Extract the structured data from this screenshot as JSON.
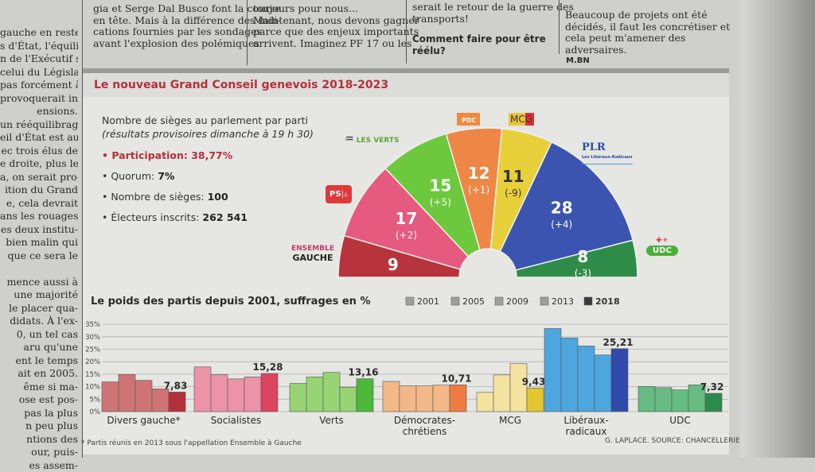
{
  "article": {
    "left_column": [
      "gauche en reste à",
      "s d'État, l'équilibre",
      "n de l'Exécutif sera",
      "celui du Législatif.",
      "pas forcément à",
      "provoquerait iné-",
      "ensions.",
      "un rééquilibrage",
      "eil d'État est aussi",
      "ec trois élus de",
      "e droite, plus le",
      "a, on serait pro-",
      "ition du Grand",
      "e, cela devrait",
      "ans les rouages",
      "es deux institu-",
      "bien malin qui",
      "que ce sera le",
      "",
      "mence aussi à",
      "une majorité",
      "le placer qua-",
      "didats. À l'ex-",
      "0, un tel cas",
      "aru qu'une",
      "ent le temps",
      "ait en 2005.",
      "ême si ma-",
      "ose est pos-",
      "pas la plus",
      "n peu plus",
      "ntions des",
      "our, puis-",
      "es assem-"
    ],
    "column_2": [
      "gia et Serge Dal Busco font la course",
      "en tête. Mais à la différence des indi-",
      "cations fournies par les sondages",
      "avant l'explosion des polémiques"
    ],
    "column_3": [
      "toujours pour nous...",
      "Maintenant, nous devons gagner",
      "parce que des enjeux importants",
      "arrivent. Imaginez PF 17 ou les"
    ],
    "column_4": [
      "serait le retour de la guerre des",
      "transports!"
    ],
    "column_4_question": [
      "Comment faire pour être",
      "réélu?"
    ],
    "column_5": [
      "Beaucoup de projets ont été",
      "décidés, il faut les concrétiser et",
      "cela peut m'amener des",
      "adversaires."
    ],
    "column_5_signature": "M.BN"
  },
  "infographic": {
    "title": "Le nouveau Grand Conseil genevois 2018-2023",
    "subtitle": "Nombre de sièges au parlement par parti",
    "subtitle_note": "(résultats provisoires dimanche à 19 h 30)",
    "facts": [
      {
        "label": "• Participation: ",
        "value": "38,77%",
        "highlight": true
      },
      {
        "label": "• Quorum: ",
        "value": "7%"
      },
      {
        "label": "• Nombre de sièges: ",
        "value": "100"
      },
      {
        "label": "• Électeurs inscrits: ",
        "value": "262 541"
      }
    ],
    "footnote": "* Partis réunis en 2013 sous l'appellation Ensemble à Gauche",
    "credit": "G. LAPLACE. SOURCE: CHANCELLERIE D'ÉTAT."
  },
  "chart_data": [
    {
      "type": "pie",
      "variant": "hemicycle",
      "title": "Nombre de sièges au parlement par parti",
      "total": 100,
      "slices": [
        {
          "party": "Ensemble à Gauche",
          "logo": [
            "ENSEMBLE",
            "GAUCHE"
          ],
          "seats": 9,
          "change": "",
          "color": "#b8343c"
        },
        {
          "party": "PS",
          "logo": [
            "PS"
          ],
          "seats": 17,
          "change": "(+2)",
          "color": "#e55a7e"
        },
        {
          "party": "Les Verts",
          "logo": [
            "LES VERTS"
          ],
          "seats": 15,
          "change": "(+5)",
          "color": "#6cc83c"
        },
        {
          "party": "PDC",
          "logo": [
            "PDC"
          ],
          "seats": 12,
          "change": "(+1)",
          "color": "#ee8646"
        },
        {
          "party": "MCG",
          "logo": [
            "MCG"
          ],
          "seats": 11,
          "change": "(-9)",
          "color": "#e8d03a"
        },
        {
          "party": "PLR",
          "logo": [
            "PLR",
            "Les Libéraux-Radicaux"
          ],
          "seats": 28,
          "change": "(+4)",
          "color": "#3a54b0"
        },
        {
          "party": "UDC",
          "logo": [
            "UDC"
          ],
          "seats": 8,
          "change": "(-3)",
          "color": "#2f8c48"
        }
      ]
    },
    {
      "type": "bar",
      "title": "Le poids des partis depuis 2001, suffrages en %",
      "legend": [
        "2001",
        "2005",
        "2009",
        "2013",
        "2018"
      ],
      "legend_placement": "top-right",
      "ylim": [
        0,
        35
      ],
      "yticks": [
        "0%",
        "5%",
        "10%",
        "15%",
        "20%",
        "25%",
        "30%",
        "35%"
      ],
      "grid": true,
      "groups": [
        {
          "label": [
            "Divers gauche*"
          ],
          "years": [
            "2001",
            "2005",
            "2009",
            "2013",
            "2018"
          ],
          "values": [
            11.9,
            14.9,
            12.5,
            9.1,
            7.83
          ],
          "label_2018": "7,83",
          "colors": [
            "#cf7474",
            "#b3303a"
          ]
        },
        {
          "label": [
            "Socialistes"
          ],
          "years": [
            "2001",
            "2005",
            "2009",
            "2013",
            "2018"
          ],
          "values": [
            17.9,
            14.8,
            13.1,
            13.9,
            15.28
          ],
          "label_2018": "15,28",
          "colors": [
            "#ec93a8",
            "#dc4462"
          ]
        },
        {
          "label": [
            "Verts"
          ],
          "years": [
            "2001",
            "2005",
            "2009",
            "2013",
            "2018"
          ],
          "values": [
            11.3,
            13.9,
            15.7,
            9.8,
            13.16
          ],
          "label_2018": "13,16",
          "colors": [
            "#98d474",
            "#4cb83a"
          ]
        },
        {
          "label": [
            "Démocrates-",
            "chrétiens"
          ],
          "years": [
            "2001",
            "2005",
            "2009",
            "2013",
            "2018"
          ],
          "values": [
            12.1,
            10.3,
            10.3,
            10.6,
            10.71
          ],
          "label_2018": "10,71",
          "colors": [
            "#f2b888",
            "#ee7c40"
          ]
        },
        {
          "label": [
            "MCG"
          ],
          "years": [
            "2005",
            "2009",
            "2013",
            "2018"
          ],
          "values": [
            7.7,
            14.7,
            19.2,
            9.43
          ],
          "label_2018": "9,43",
          "colors": [
            "#f4e2a0",
            "#e4c630"
          ]
        },
        {
          "label": [
            "Libéraux-",
            "radicaux"
          ],
          "years": [
            "2001",
            "2005",
            "2009",
            "2013",
            "2018"
          ],
          "values": [
            33.3,
            29.5,
            26.3,
            22.7,
            25.21
          ],
          "label_2018": "25,21",
          "colors": [
            "#4ea6de",
            "#2f4aa8"
          ]
        },
        {
          "label": [
            "UDC"
          ],
          "years": [
            "2001",
            "2005",
            "2009",
            "2013",
            "2018"
          ],
          "values": [
            10.1,
            9.6,
            8.7,
            10.7,
            7.32
          ],
          "label_2018": "7,32",
          "colors": [
            "#66bc82",
            "#2e8a4c"
          ]
        }
      ]
    }
  ]
}
